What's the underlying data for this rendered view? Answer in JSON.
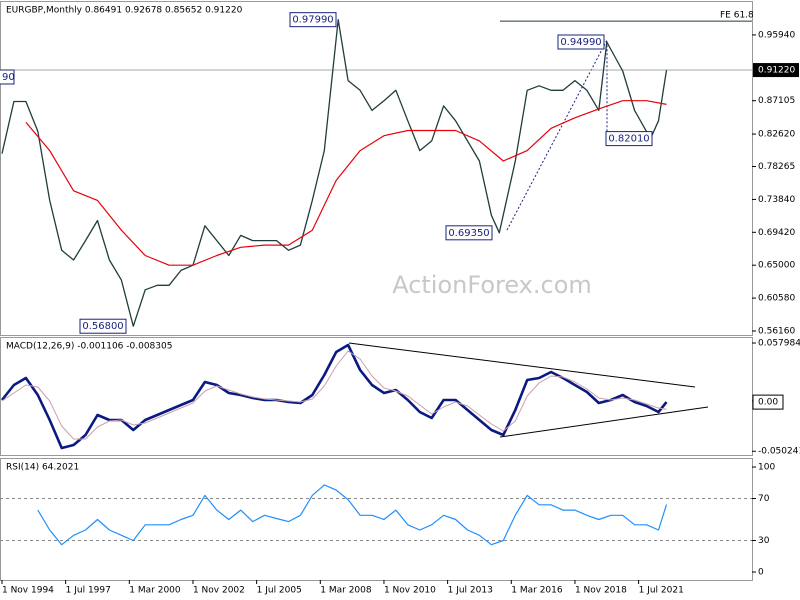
{
  "chart_data": [
    {
      "type": "line",
      "title": "EURGBP,Monthly 0.86491 0.92678 0.85652 0.91220",
      "watermark": "ActionForex.com",
      "xlim": [
        "1994-10",
        "2026-04"
      ],
      "ylim": [
        0.5562,
        1.005
      ],
      "yticks": [
        {
          "value": 0.9594,
          "label": "0.95940"
        },
        0.87105,
        {
          "value": 0.8262,
          "label": "0.82620"
        },
        0.78265,
        {
          "value": 0.7384,
          "label": "0.73840"
        },
        {
          "value": 0.6942,
          "label": "0.69420"
        },
        {
          "value": 0.65,
          "label": "0.65000"
        },
        {
          "value": 0.6058,
          "label": "0.60580"
        },
        {
          "value": 0.5616,
          "label": "0.56160"
        }
      ],
      "last_price": {
        "value": 0.9122,
        "label": "0.91220"
      },
      "levels": [
        {
          "name": "FE 61.8",
          "value": 0.978
        }
      ],
      "annotations": [
        {
          "value": 0.9799,
          "label": "0.97990"
        },
        {
          "value": 0.9499,
          "label": "0.94990"
        },
        {
          "value": 0.8201,
          "label": "0.82010"
        },
        {
          "value": 0.6935,
          "label": "0.69350"
        },
        {
          "value": 0.568,
          "label": "0.56800"
        }
      ],
      "partial_label": "90",
      "series": [
        {
          "color": "#1f3d3a",
          "x": [
            "1994-11",
            "1995-05",
            "1995-11",
            "1996-05",
            "1996-11",
            "1997-05",
            "1997-11",
            "1998-05",
            "1998-11",
            "1999-05",
            "1999-11",
            "2000-05",
            "2000-11",
            "2001-05",
            "2001-11",
            "2002-05",
            "2002-11",
            "2003-05",
            "2003-11",
            "2004-05",
            "2004-11",
            "2005-05",
            "2005-11",
            "2006-05",
            "2006-11",
            "2007-05",
            "2007-11",
            "2008-05",
            "2008-12",
            "2009-05",
            "2009-11",
            "2010-05",
            "2010-11",
            "2011-05",
            "2011-11",
            "2012-05",
            "2012-11",
            "2013-05",
            "2013-11",
            "2014-05",
            "2014-11",
            "2015-05",
            "2015-09",
            "2016-05",
            "2016-11",
            "2017-05",
            "2017-11",
            "2018-05",
            "2018-11",
            "2019-05",
            "2019-11",
            "2020-03",
            "2020-11",
            "2021-05",
            "2022-01",
            "2022-05",
            "2022-09"
          ],
          "values": [
            0.8,
            0.87,
            0.87,
            0.83,
            0.737,
            0.67,
            0.657,
            0.683,
            0.71,
            0.657,
            0.63,
            0.568,
            0.617,
            0.623,
            0.623,
            0.643,
            0.65,
            0.703,
            0.683,
            0.663,
            0.69,
            0.683,
            0.683,
            0.683,
            0.67,
            0.677,
            0.737,
            0.804,
            0.9799,
            0.898,
            0.885,
            0.858,
            0.871,
            0.885,
            0.844,
            0.804,
            0.817,
            0.864,
            0.844,
            0.817,
            0.79,
            0.717,
            0.6935,
            0.79,
            0.885,
            0.891,
            0.885,
            0.885,
            0.898,
            0.885,
            0.858,
            0.9499,
            0.911,
            0.858,
            0.8201,
            0.844,
            0.9122
          ]
        },
        {
          "color": "#e8000b",
          "x": [
            "1995-11",
            "1996-11",
            "1997-11",
            "1998-11",
            "1999-11",
            "2000-11",
            "2001-11",
            "2002-11",
            "2003-11",
            "2004-11",
            "2005-11",
            "2006-11",
            "2007-11",
            "2008-11",
            "2009-11",
            "2010-11",
            "2011-11",
            "2012-11",
            "2013-11",
            "2014-11",
            "2015-11",
            "2016-11",
            "2017-11",
            "2018-11",
            "2019-11",
            "2020-11",
            "2021-11",
            "2022-09"
          ],
          "values": [
            0.842,
            0.804,
            0.75,
            0.737,
            0.697,
            0.663,
            0.65,
            0.65,
            0.663,
            0.674,
            0.677,
            0.677,
            0.697,
            0.764,
            0.804,
            0.824,
            0.831,
            0.831,
            0.831,
            0.817,
            0.79,
            0.804,
            0.834,
            0.848,
            0.86,
            0.871,
            0.871,
            0.866
          ]
        }
      ]
    },
    {
      "type": "line",
      "title": "MACD(12,26,9) -0.001106 -0.008305",
      "xlim": [
        "1994-10",
        "2026-04"
      ],
      "ylim": [
        -0.054,
        0.064
      ],
      "yticks": [
        0.057984,
        {
          "value": 0,
          "label": "0.00"
        },
        -0.050241
      ],
      "last_value": {
        "value": -0.001106,
        "label": "0.00"
      },
      "series": [
        {
          "color": "#0a1a80",
          "x": [
            "1994-11",
            "1995-05",
            "1995-11",
            "1996-05",
            "1996-11",
            "1997-05",
            "1997-11",
            "1998-05",
            "1998-11",
            "1999-05",
            "1999-11",
            "2000-05",
            "2000-11",
            "2001-05",
            "2001-11",
            "2002-05",
            "2002-11",
            "2003-05",
            "2003-11",
            "2004-05",
            "2004-11",
            "2005-05",
            "2005-11",
            "2006-05",
            "2006-11",
            "2007-05",
            "2007-11",
            "2008-05",
            "2008-11",
            "2009-05",
            "2009-11",
            "2010-05",
            "2010-11",
            "2011-05",
            "2011-11",
            "2012-05",
            "2012-11",
            "2013-05",
            "2013-11",
            "2014-05",
            "2014-11",
            "2015-05",
            "2015-11",
            "2016-05",
            "2016-11",
            "2017-05",
            "2017-11",
            "2018-05",
            "2018-11",
            "2019-05",
            "2019-11",
            "2020-05",
            "2020-11",
            "2021-05",
            "2021-11",
            "2022-05",
            "2022-09"
          ],
          "values": [
            0.001,
            0.016,
            0.023,
            0.006,
            -0.019,
            -0.047,
            -0.044,
            -0.034,
            -0.014,
            -0.019,
            -0.019,
            -0.029,
            -0.019,
            -0.014,
            -0.009,
            -0.004,
            0.001,
            0.019,
            0.016,
            0.008,
            0.006,
            0.003,
            0.001,
            0.001,
            -0.001,
            -0.002,
            0.006,
            0.026,
            0.049,
            0.056,
            0.031,
            0.016,
            0.008,
            0.011,
            0.001,
            -0.011,
            -0.017,
            0.001,
            0.001,
            -0.009,
            -0.019,
            -0.029,
            -0.034,
            -0.009,
            0.021,
            0.023,
            0.029,
            0.023,
            0.016,
            0.009,
            -0.002,
            0.001,
            0.006,
            -0.001,
            -0.005,
            -0.011,
            -0.001106
          ]
        },
        {
          "color": "#c8a0b0",
          "x": [
            "1994-11",
            "1995-05",
            "1995-11",
            "1996-05",
            "1996-11",
            "1997-05",
            "1997-11",
            "1998-05",
            "1998-11",
            "1999-05",
            "1999-11",
            "2000-05",
            "2000-11",
            "2001-05",
            "2001-11",
            "2002-05",
            "2002-11",
            "2003-05",
            "2003-11",
            "2004-05",
            "2004-11",
            "2005-05",
            "2005-11",
            "2006-05",
            "2006-11",
            "2007-05",
            "2007-11",
            "2008-05",
            "2008-11",
            "2009-05",
            "2009-11",
            "2010-05",
            "2010-11",
            "2011-05",
            "2011-11",
            "2012-05",
            "2012-11",
            "2013-05",
            "2013-11",
            "2014-05",
            "2014-11",
            "2015-05",
            "2015-11",
            "2016-05",
            "2016-11",
            "2017-05",
            "2017-11",
            "2018-05",
            "2018-11",
            "2019-05",
            "2019-11",
            "2020-05",
            "2020-11",
            "2021-05",
            "2021-11",
            "2022-05",
            "2022-09"
          ],
          "values": [
            0,
            0.008,
            0.016,
            0.014,
            0,
            -0.025,
            -0.038,
            -0.038,
            -0.026,
            -0.02,
            -0.019,
            -0.024,
            -0.022,
            -0.017,
            -0.012,
            -0.007,
            -0.002,
            0.01,
            0.015,
            0.011,
            0.007,
            0.004,
            0.002,
            0.001,
            0,
            -0.001,
            0.002,
            0.015,
            0.035,
            0.05,
            0.042,
            0.025,
            0.013,
            0.01,
            0.005,
            -0.004,
            -0.013,
            -0.006,
            -0.001,
            -0.005,
            -0.014,
            -0.023,
            -0.03,
            -0.02,
            0.005,
            0.018,
            0.025,
            0.024,
            0.019,
            0.012,
            0.003,
            0.001,
            0.003,
            0.001,
            -0.003,
            -0.007,
            -0.008305
          ]
        }
      ]
    },
    {
      "type": "line",
      "title": "RSI(14) 64.2021",
      "xlim": [
        "1994-10",
        "2026-04"
      ],
      "ylim": [
        -7.6,
        108.6
      ],
      "yticks": [
        100,
        70,
        30,
        0
      ],
      "levels": [
        70,
        30
      ],
      "xticks": [
        {
          "value": "1994-11",
          "label": "1 Nov 1994"
        },
        {
          "value": "1997-07",
          "label": "1 Jul 1997"
        },
        {
          "value": "2000-03",
          "label": "1 Mar 2000"
        },
        {
          "value": "2002-11",
          "label": "1 Nov 2002"
        },
        {
          "value": "2005-07",
          "label": "1 Jul 2005"
        },
        {
          "value": "2008-03",
          "label": "1 Mar 2008"
        },
        {
          "value": "2010-11",
          "label": "1 Nov 2010"
        },
        {
          "value": "2013-07",
          "label": "1 Jul 2013"
        },
        {
          "value": "2016-03",
          "label": "1 Mar 2016"
        },
        {
          "value": "2018-11",
          "label": "1 Nov 2018"
        },
        {
          "value": "2021-07",
          "label": "1 Jul 2021"
        }
      ],
      "series": [
        {
          "color": "#1e90ff",
          "x": [
            "1994-11",
            "1995-05",
            "1995-11",
            "1996-05",
            "1996-11",
            "1997-05",
            "1997-11",
            "1998-05",
            "1998-11",
            "1999-05",
            "1999-11",
            "2000-05",
            "2000-11",
            "2001-05",
            "2001-11",
            "2002-05",
            "2002-11",
            "2003-05",
            "2003-11",
            "2004-05",
            "2004-11",
            "2005-05",
            "2005-11",
            "2006-05",
            "2006-11",
            "2007-05",
            "2007-11",
            "2008-05",
            "2008-11",
            "2009-05",
            "2009-11",
            "2010-05",
            "2010-11",
            "2011-05",
            "2011-11",
            "2012-05",
            "2012-11",
            "2013-05",
            "2013-11",
            "2014-05",
            "2014-11",
            "2015-05",
            "2015-11",
            "2016-05",
            "2016-11",
            "2017-05",
            "2017-11",
            "2018-05",
            "2018-11",
            "2019-05",
            "2019-11",
            "2020-05",
            "2020-11",
            "2021-05",
            "2021-11",
            "2022-05",
            "2022-09"
          ],
          "values": [
            null,
            null,
            null,
            59,
            40,
            26,
            35,
            40,
            50,
            40,
            35,
            30,
            45,
            45,
            45,
            50,
            54,
            73,
            59,
            50,
            59,
            48,
            54,
            51,
            48,
            54,
            73,
            83,
            78,
            69,
            54,
            54,
            50,
            59,
            45,
            40,
            45,
            54,
            50,
            40,
            35,
            26,
            30,
            54,
            73,
            64,
            64,
            59,
            59,
            54,
            50,
            54,
            54,
            45,
            45,
            40,
            64.2021
          ]
        }
      ]
    }
  ]
}
